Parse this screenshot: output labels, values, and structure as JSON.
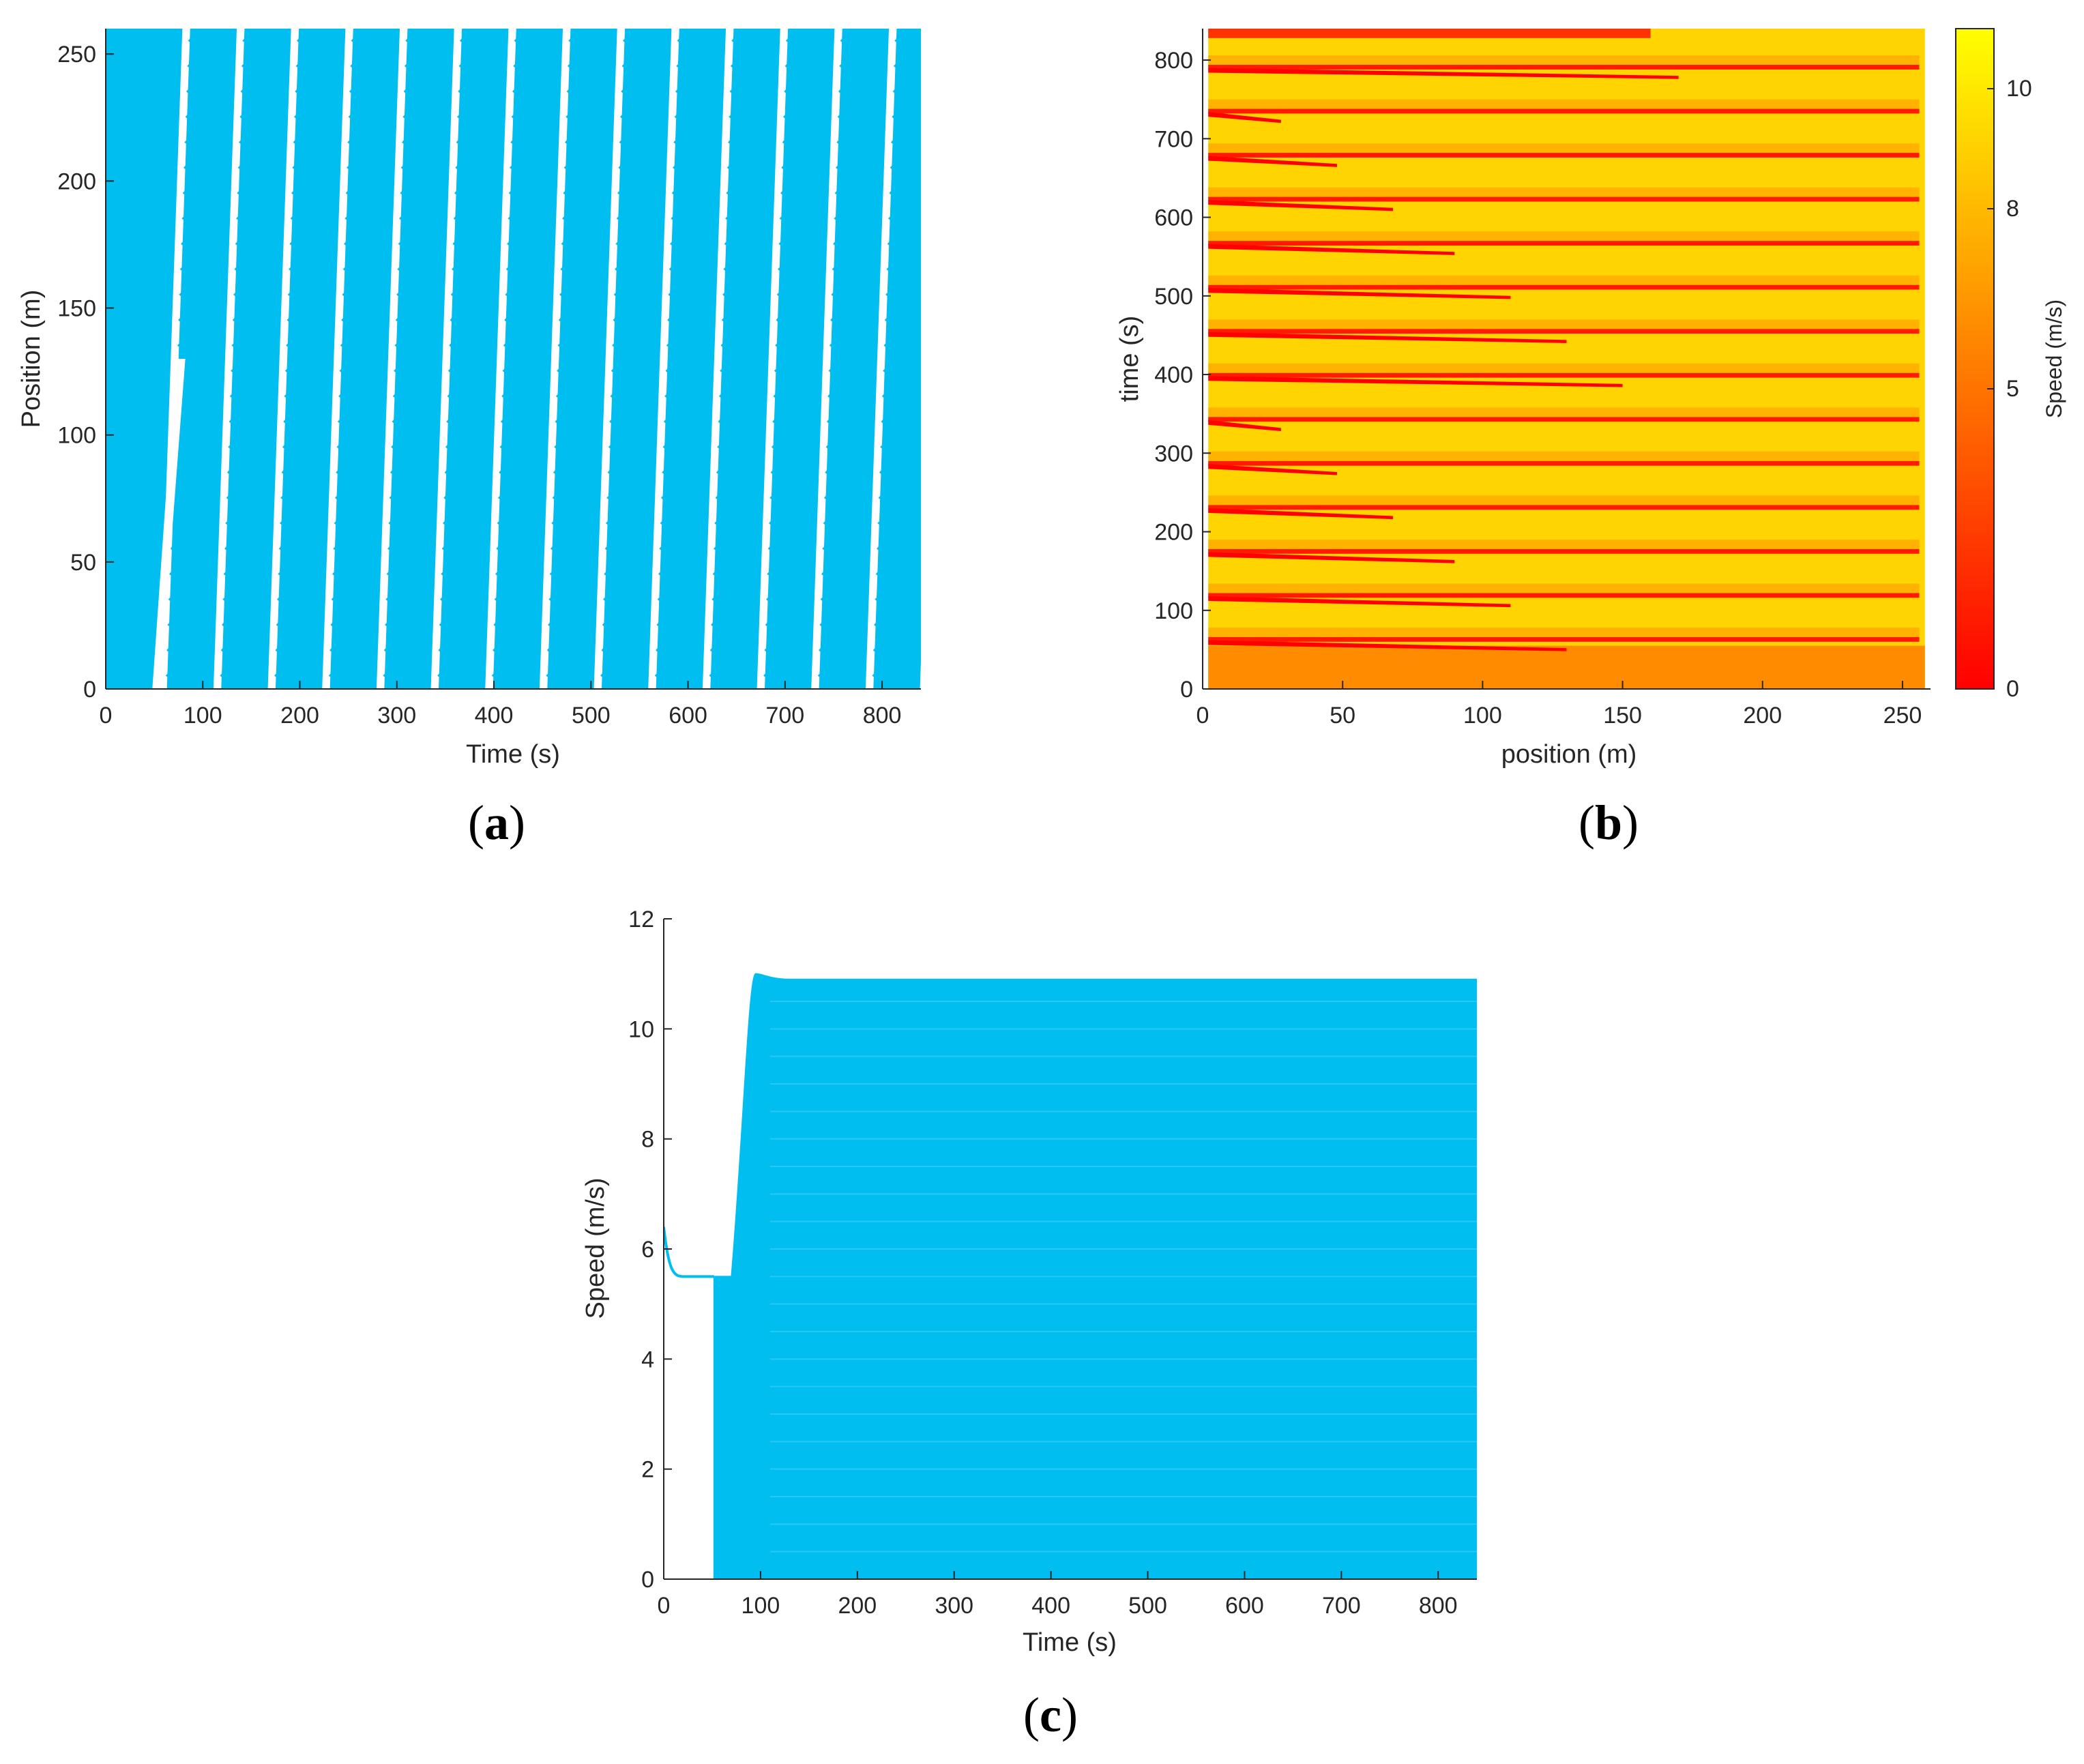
{
  "chart_data": [
    {
      "id": "a",
      "type": "line",
      "caption_letter": "a",
      "xlabel": "Time (s)",
      "ylabel": "Position (m)",
      "xlim": [
        0,
        840
      ],
      "ylim": [
        0,
        260
      ],
      "xticks": [
        0,
        100,
        200,
        300,
        400,
        500,
        600,
        700,
        800
      ],
      "yticks": [
        0,
        50,
        100,
        150,
        200,
        250
      ],
      "grid": false,
      "series_color": "#00BFF0",
      "description_values": {
        "ring_length_m": 260,
        "band_period_s": 56,
        "first_wave_start_s": 55
      }
    },
    {
      "id": "b",
      "type": "heatmap",
      "caption_letter": "b",
      "xlabel": "position (m)",
      "ylabel": "time (s)",
      "xlim": [
        0,
        260
      ],
      "ylim": [
        0,
        840
      ],
      "xticks": [
        0,
        50,
        100,
        150,
        200,
        250
      ],
      "yticks": [
        0,
        100,
        200,
        300,
        400,
        500,
        600,
        700,
        800
      ],
      "colorbar": {
        "label": "Speed (m/s)",
        "ticks": [
          0,
          5,
          8,
          10
        ],
        "range": [
          0,
          11
        ],
        "colormap": "autumn",
        "low_color": "#FF0000",
        "high_color": "#FFFF00"
      },
      "initial_speed_ms": 5.5,
      "jam_period_s": 56
    },
    {
      "id": "c",
      "type": "line",
      "caption_letter": "c",
      "xlabel": "Time (s)",
      "ylabel": "Speed (m/s)",
      "xlim": [
        0,
        840
      ],
      "ylim": [
        0,
        12
      ],
      "xticks": [
        0,
        100,
        200,
        300,
        400,
        500,
        600,
        700,
        800
      ],
      "yticks": [
        0,
        2,
        4,
        6,
        8,
        10,
        12
      ],
      "grid": false,
      "series_color": "#00BFF0",
      "initial_speed_ms": 6.4,
      "plateau_speed_ms": 5.5,
      "drop_time_s": 52,
      "peak_speed_ms": 11.0,
      "steady_max_speed_ms": 10.9,
      "end_time_s": 840
    }
  ]
}
